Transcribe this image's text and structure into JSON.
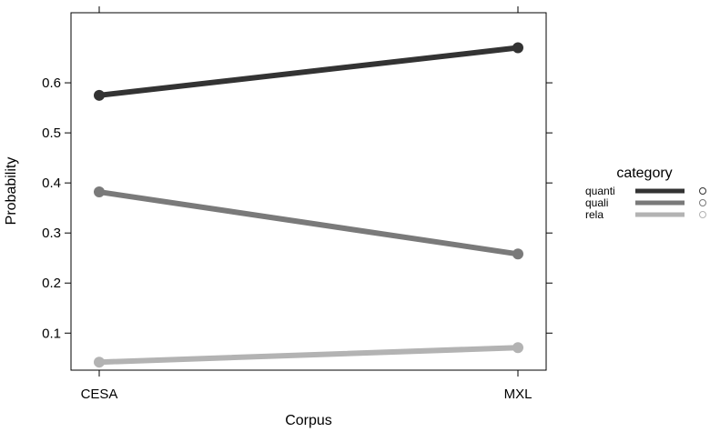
{
  "chart_data": {
    "type": "line",
    "xlabel": "Corpus",
    "ylabel": "Probability",
    "categories": [
      "CESA",
      "MXL"
    ],
    "yticks": [
      0.1,
      0.2,
      0.3,
      0.4,
      0.5,
      0.6
    ],
    "ytick_labels": [
      "0.1",
      "0.2",
      "0.3",
      "0.4",
      "0.5",
      "0.6"
    ],
    "ylim": [
      0.026,
      0.74
    ],
    "grid": false,
    "legend": {
      "title": "category",
      "placement": "right"
    },
    "series": [
      {
        "name": "quanti",
        "values": [
          0.575,
          0.67
        ],
        "color": "#333333"
      },
      {
        "name": "quali",
        "values": [
          0.382,
          0.258
        ],
        "color": "#7a7a7a"
      },
      {
        "name": "rela",
        "values": [
          0.042,
          0.071
        ],
        "color": "#b3b3b3"
      }
    ]
  }
}
